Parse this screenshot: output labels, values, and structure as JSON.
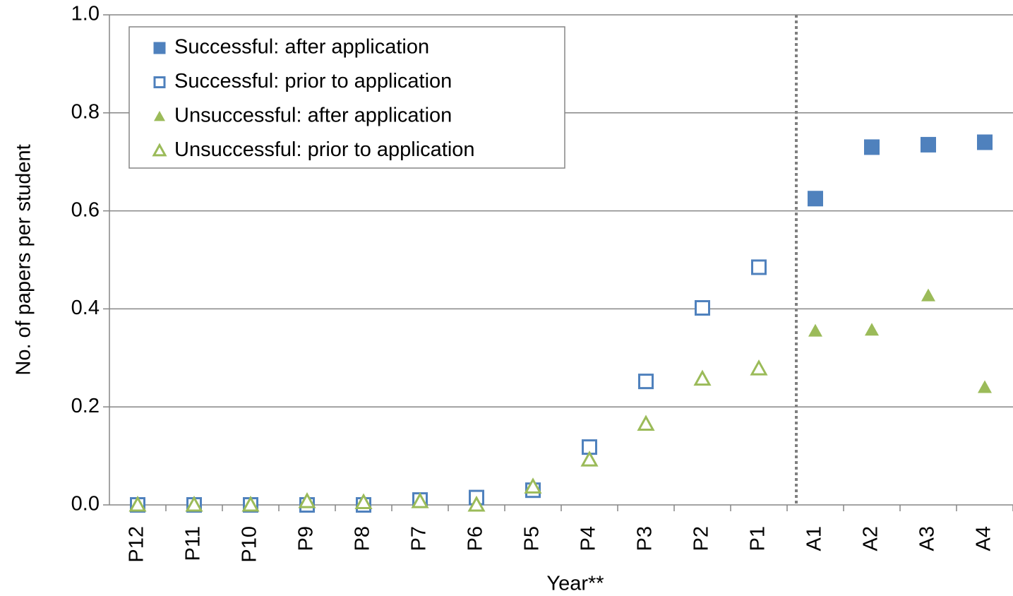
{
  "chart_data": {
    "type": "scatter",
    "x_label": "Year**",
    "y_label": "No. of papers per student",
    "categories": [
      "P12",
      "P11",
      "P10",
      "P9",
      "P8",
      "P7",
      "P6",
      "P5",
      "P4",
      "P3",
      "P2",
      "P1",
      "A1",
      "A2",
      "A3",
      "A4"
    ],
    "series": [
      {
        "name": "Successful: after application",
        "color": "#4f81bd",
        "marker": "square",
        "filled": true,
        "values": [
          null,
          null,
          null,
          null,
          null,
          null,
          null,
          null,
          null,
          null,
          null,
          null,
          0.625,
          0.73,
          0.735,
          0.74
        ]
      },
      {
        "name": "Successful: prior to application",
        "color": "#4f81bd",
        "marker": "square",
        "filled": false,
        "values": [
          0,
          0,
          0,
          0,
          0,
          0.01,
          0.015,
          0.03,
          0.118,
          0.252,
          0.402,
          0.485,
          null,
          null,
          null,
          null
        ]
      },
      {
        "name": "Unsuccessful: after application",
        "color": "#9bbb59",
        "marker": "triangle",
        "filled": true,
        "values": [
          null,
          null,
          null,
          null,
          null,
          null,
          null,
          null,
          null,
          null,
          null,
          null,
          0.355,
          0.357,
          0.427,
          0.24
        ]
      },
      {
        "name": "Unsuccessful: prior to application",
        "color": "#9bbb59",
        "marker": "triangle",
        "filled": false,
        "values": [
          0,
          0,
          0,
          0.007,
          0.005,
          0.007,
          0,
          0.037,
          0.092,
          0.165,
          0.257,
          0.278,
          null,
          null,
          null,
          null
        ]
      }
    ],
    "ylim": [
      0,
      1
    ],
    "yticks": [
      {
        "value": 0,
        "label": "0.0"
      },
      0.2,
      0.4,
      0.6,
      0.8,
      {
        "value": 1,
        "label": "1.0"
      }
    ],
    "grid": true,
    "legend": "upper left"
  }
}
